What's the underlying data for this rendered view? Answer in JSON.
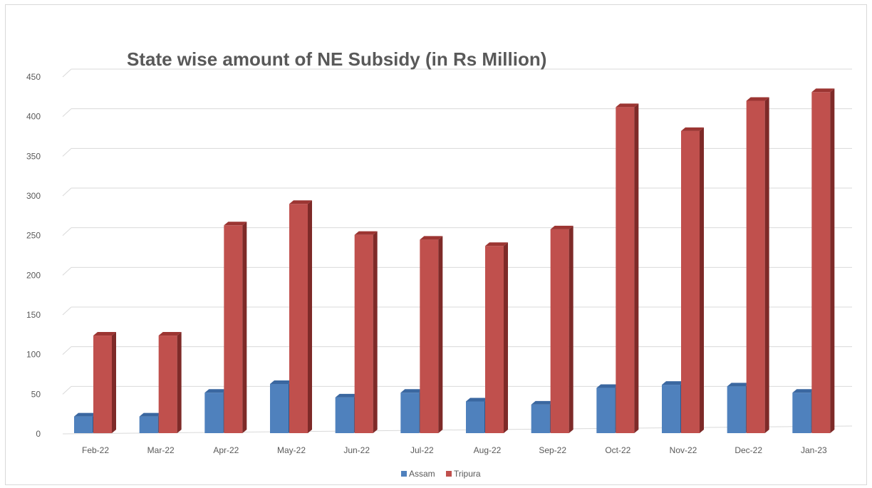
{
  "chart_data": {
    "type": "bar",
    "title": "State wise amount of NE Subsidy (in Rs Million)",
    "xlabel": "",
    "ylabel": "",
    "ylim": [
      0,
      450
    ],
    "y_ticks": [
      "0",
      "50",
      "100",
      "150",
      "200",
      "250",
      "300",
      "350",
      "400",
      "450"
    ],
    "grid": true,
    "legend_position": "bottom",
    "categories": [
      "Feb-22",
      "Mar-22",
      "Apr-22",
      "May-22",
      "Jun-22",
      "Jul-22",
      "Aug-22",
      "Sep-22",
      "Oct-22",
      "Nov-22",
      "Dec-22",
      "Jan-23"
    ],
    "series": [
      {
        "name": "Assam",
        "color": "#4f81bd",
        "side_color": "#2f5688",
        "top_color": "#3a67a0",
        "values": [
          21,
          21,
          51,
          62,
          45,
          51,
          40,
          36,
          57,
          61,
          59,
          51
        ]
      },
      {
        "name": "Tripura",
        "color": "#c0504d",
        "side_color": "#7e2a28",
        "top_color": "#9c3532",
        "values": [
          123,
          123,
          262,
          289,
          250,
          244,
          236,
          257,
          411,
          381,
          419,
          430
        ]
      }
    ]
  }
}
